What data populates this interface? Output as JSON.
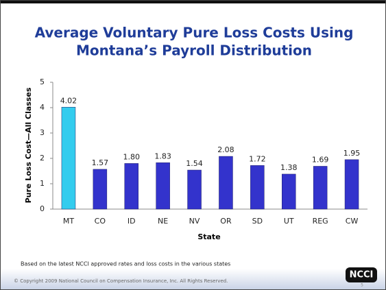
{
  "chart_data": {
    "type": "bar",
    "title": [
      "Average Voluntary Pure Loss Costs Using",
      "Montana’s Payroll Distribution"
    ],
    "categories": [
      "MT",
      "CO",
      "ID",
      "NE",
      "NV",
      "OR",
      "SD",
      "UT",
      "REG",
      "CW"
    ],
    "values": [
      4.02,
      1.57,
      1.8,
      1.83,
      1.54,
      2.08,
      1.72,
      1.38,
      1.69,
      1.95
    ],
    "value_labels": [
      "4.02",
      "1.57",
      "1.80",
      "1.83",
      "1.54",
      "2.08",
      "1.72",
      "1.38",
      "1.69",
      "1.95"
    ],
    "colors": [
      "#33ccee",
      "#3333cc",
      "#3333cc",
      "#3333cc",
      "#3333cc",
      "#3333cc",
      "#3333cc",
      "#3333cc",
      "#3333cc",
      "#3333cc"
    ],
    "ylim": [
      0,
      5
    ],
    "yticks": [
      0,
      1,
      2,
      3,
      4,
      5
    ],
    "grid": false,
    "xlabel": "State",
    "ylabel": "Pure Loss Cost—All Classes",
    "footnote": "Based on the latest NCCI approved rates and loss costs in the various states",
    "copyright": "© Copyright 2009 National Council on Compensation Insurance, Inc. All Rights Reserved.",
    "logo": "NCCI",
    "page_number": "5"
  }
}
